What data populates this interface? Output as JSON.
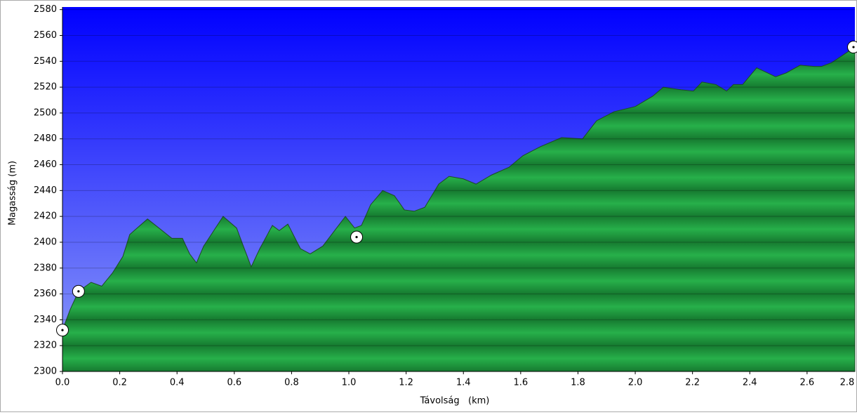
{
  "chart_data": {
    "type": "area",
    "xlabel": "Távolság   (km)",
    "ylabel": "Magasság (m)",
    "x": [
      0,
      0.027,
      0.056,
      0.1,
      0.137,
      0.174,
      0.211,
      0.235,
      0.297,
      0.382,
      0.419,
      0.444,
      0.468,
      0.493,
      0.561,
      0.608,
      0.635,
      0.659,
      0.689,
      0.733,
      0.757,
      0.787,
      0.831,
      0.865,
      0.909,
      0.988,
      1.02,
      1.044,
      1.076,
      1.118,
      1.159,
      1.194,
      1.228,
      1.265,
      1.314,
      1.35,
      1.4,
      1.444,
      1.498,
      1.559,
      1.608,
      1.669,
      1.743,
      1.816,
      1.865,
      1.926,
      2.0,
      2.061,
      2.098,
      2.159,
      2.203,
      2.233,
      2.282,
      2.319,
      2.343,
      2.375,
      2.424,
      2.453,
      2.49,
      2.527,
      2.576,
      2.625,
      2.65,
      2.686,
      2.767
    ],
    "values": [
      2332,
      2348,
      2362,
      2369,
      2366,
      2376,
      2389,
      2406,
      2418,
      2403,
      2403,
      2391,
      2384,
      2397,
      2420,
      2411,
      2395,
      2381,
      2395,
      2413,
      2409,
      2414,
      2395,
      2391,
      2397,
      2420,
      2411,
      2413,
      2429,
      2440,
      2436,
      2425,
      2424,
      2427,
      2445,
      2451,
      2449,
      2445,
      2452,
      2458,
      2467,
      2474,
      2481,
      2480,
      2494,
      2501,
      2505,
      2513,
      2520,
      2518,
      2517,
      2524,
      2522,
      2517,
      2522,
      2522,
      2535,
      2532,
      2528,
      2531,
      2537,
      2536,
      2536,
      2539,
      2551
    ],
    "color": "#22a845",
    "waypoints_x": [
      0,
      0.056,
      1.027,
      2.767
    ],
    "waypoints_y": [
      2332,
      2362,
      2404,
      2551
    ],
    "xlim": [
      0,
      2.767
    ],
    "ylim": [
      2300,
      2582
    ],
    "xticks": [
      {
        "value": 0,
        "label": "0.0"
      },
      0.2,
      0.4,
      0.6,
      0.8,
      {
        "value": 1,
        "label": "1.0"
      },
      1.2,
      1.4,
      1.6,
      1.8,
      {
        "value": 2,
        "label": "2.0"
      },
      2.2,
      2.4,
      2.6,
      2.8
    ],
    "yticks": [
      2300,
      2320,
      2340,
      2360,
      2380,
      2400,
      2420,
      2440,
      2460,
      2480,
      2500,
      2520,
      2540,
      2560,
      2580
    ],
    "grid": true
  }
}
